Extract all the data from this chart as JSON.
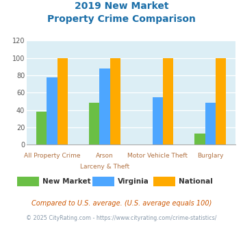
{
  "title_line1": "2019 New Market",
  "title_line2": "Property Crime Comparison",
  "categories_top": [
    "All Property Crime",
    "Arson",
    "Motor Vehicle Theft",
    "Burglary"
  ],
  "categories_bottom": [
    "",
    "Larceny & Theft",
    "",
    ""
  ],
  "series": {
    "New Market": [
      38,
      48,
      0,
      13
    ],
    "Virginia": [
      78,
      88,
      55,
      48
    ],
    "National": [
      100,
      100,
      100,
      100
    ]
  },
  "colors": {
    "New Market": "#6abf45",
    "Virginia": "#4da6ff",
    "National": "#ffaa00"
  },
  "ylim": [
    0,
    120
  ],
  "yticks": [
    0,
    20,
    40,
    60,
    80,
    100,
    120
  ],
  "plot_bg": "#dceef5",
  "title_color": "#1a6ea8",
  "xlabel_color": "#b07040",
  "legend_text_color": "#333333",
  "footnote1": "Compared to U.S. average. (U.S. average equals 100)",
  "footnote2": "© 2025 CityRating.com - https://www.cityrating.com/crime-statistics/",
  "footnote1_color": "#cc5500",
  "footnote2_color": "#8899aa"
}
